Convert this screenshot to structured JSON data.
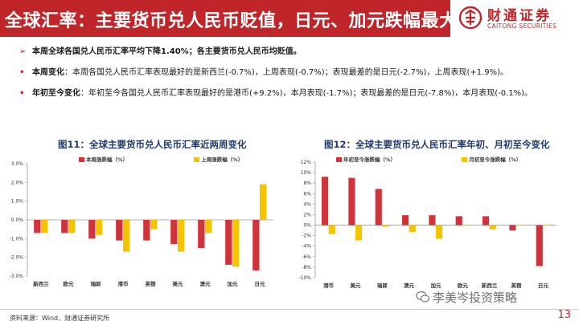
{
  "header": {
    "title": "全球汇率：主要货币兑人民币贬值，日元、加元跌幅最大",
    "logo_cn": "财通证券",
    "logo_en": "CAITONG SECURITIES",
    "brand_color": "#c0252a"
  },
  "bullets": [
    {
      "marker": "➢",
      "bold": "",
      "text": "本周全球各国兑人民币汇率平均下降1.40%；各主要货币兑人民币均贬值。",
      "all_bold": true
    },
    {
      "marker": "•",
      "bold": "本周变化",
      "text": "：本周各国兑人民币汇率表现最好的是新西兰(-0.7%)，上周表现(-0.7%)；表现最差的是日元(-2.7%)，上周表现(+1.9%)。",
      "all_bold": false
    },
    {
      "marker": "•",
      "bold": "年初至今变化",
      "text": "：年初至今各国兑人民币汇率表现最好的是港币(+9.2%)，本月表现(-1.7%)；表现最差的是日元(-7.8%)，本月表现(-0.1%)。",
      "all_bold": false
    }
  ],
  "chart_data": [
    {
      "type": "bar",
      "title": "图11：全球主要货币兑人民币汇率近两周变化",
      "categories": [
        "新西兰",
        "欧元",
        "瑞郎",
        "港币",
        "英镑",
        "美元",
        "澳元",
        "加元",
        "日元"
      ],
      "series": [
        {
          "name": "本周涨跌幅（%）",
          "color": "#d0343a",
          "values": [
            -0.7,
            -0.7,
            -1.0,
            -1.1,
            -1.1,
            -1.3,
            -1.5,
            -2.4,
            -2.7
          ]
        },
        {
          "name": "上周涨跌幅（%）",
          "color": "#f5c400",
          "values": [
            -0.7,
            -0.7,
            -0.8,
            -1.7,
            -0.5,
            -1.7,
            -0.7,
            -2.5,
            1.9
          ]
        }
      ],
      "ylim": [
        -3.0,
        3.0
      ],
      "yticks": [
        "3.0%",
        "2.0%",
        "1.0%",
        "0.0%",
        "-1.0%",
        "-2.0%",
        "-3.0%"
      ],
      "xlabel": "",
      "ylabel": "",
      "grid": false,
      "legend": "top"
    },
    {
      "type": "bar",
      "title": "图12：全球主要货币兑人民币汇率年初、月初至今变化",
      "categories": [
        "港币",
        "美元",
        "瑞郎",
        "澳元",
        "加元",
        "欧元",
        "新西兰",
        "英镑",
        "日元"
      ],
      "series": [
        {
          "name": "年初至今涨跌幅（%）",
          "color": "#d0343a",
          "values": [
            9.2,
            9.0,
            6.9,
            1.9,
            1.9,
            1.7,
            1.7,
            -1.0,
            -7.8
          ]
        },
        {
          "name": "月初至今涨跌幅（%）",
          "color": "#f5c400",
          "values": [
            -1.7,
            -2.9,
            -0.3,
            -1.3,
            -2.6,
            0.0,
            -0.8,
            0.0,
            -0.1
          ]
        }
      ],
      "ylim": [
        -10,
        12
      ],
      "yticks": [
        "12%",
        "10%",
        "8%",
        "6%",
        "4%",
        "2%",
        "0%",
        "-2%",
        "-4%",
        "-6%",
        "-8%",
        "-10%"
      ],
      "xlabel": "",
      "ylabel": "",
      "grid": false,
      "legend": "top"
    }
  ],
  "footer": {
    "source": "资料来源：Wind，财通证券研究所",
    "watermark": "李美岑投资策略",
    "page": "13"
  }
}
